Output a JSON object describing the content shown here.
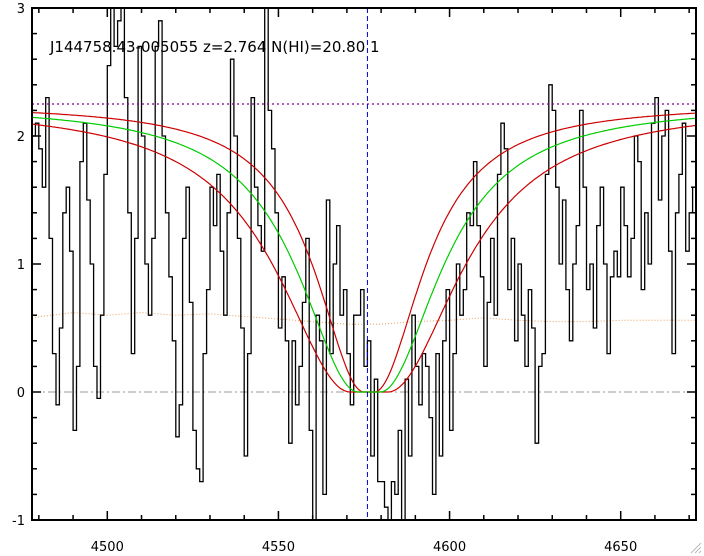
{
  "chart_data": {
    "type": "line",
    "title": "J144758.43-005055 z=2.764 N(HI)=20.80 1",
    "xlabel": "",
    "ylabel": "",
    "xlim": [
      4478,
      4672
    ],
    "ylim": [
      -1,
      3
    ],
    "x_ticks": [
      4500,
      4550,
      4600,
      4650
    ],
    "x_tick_labels": [
      "4500",
      "4550",
      "4600",
      "4650"
    ],
    "y_ticks": [
      -1,
      0,
      1,
      2,
      3
    ],
    "y_tick_labels": [
      "-1",
      "0",
      "1",
      "2",
      "3"
    ],
    "grid": false,
    "legend": "none",
    "continuum_level": 2.25,
    "zero_level": 0,
    "line_center": 4576,
    "model": {
      "center": 4576.5,
      "continuum": 2.25,
      "gamma": 21,
      "gamma_low": 17,
      "gamma_high": 25.5,
      "core_half_width": 3.2,
      "core_half_width_low": 1.5,
      "core_half_width_high": 5.5
    },
    "series": [
      {
        "kind": "flux",
        "color": "#000000",
        "x_start": 4478.5,
        "x_step": 1,
        "values": [
          2.0,
          2.1,
          1.9,
          1.6,
          2.3,
          1.2,
          0.3,
          -0.1,
          0.5,
          1.4,
          1.6,
          1.1,
          -0.3,
          0.2,
          1.8,
          2.1,
          1.5,
          1.0,
          0.2,
          -0.05,
          0.6,
          1.7,
          2.55,
          3.0,
          2.7,
          2.9,
          3.05,
          2.3,
          1.4,
          0.3,
          1.2,
          2.7,
          2.0,
          1.0,
          0.6,
          1.2,
          2.7,
          2.9,
          2.0,
          1.4,
          0.9,
          0.4,
          -0.35,
          -0.1,
          1.2,
          1.6,
          0.7,
          -0.3,
          -0.6,
          -0.7,
          0.3,
          0.8,
          1.6,
          1.3,
          1.7,
          1.1,
          0.6,
          1.4,
          2.6,
          2.0,
          1.2,
          0.5,
          -0.5,
          0.3,
          2.3,
          1.6,
          1.3,
          1.1,
          3.05,
          2.2,
          1.9,
          1.4,
          0.5,
          0.9,
          0.4,
          -0.4,
          0.4,
          -0.1,
          0.2,
          0.7,
          1.2,
          -0.3,
          -1.0,
          0.6,
          0.4,
          -0.8,
          1.5,
          0.3,
          1.0,
          1.3,
          0.6,
          0.8,
          0.3,
          -0.1,
          0.6,
          0.6,
          0.8,
          0.2,
          0.4,
          -0.5,
          0.1,
          -0.7,
          -0.7,
          -0.9,
          -1.15,
          -0.7,
          -0.8,
          -0.3,
          -1.0,
          0.1,
          -0.5,
          0.6,
          0.2,
          -0.1,
          0.3,
          0.2,
          -0.2,
          -0.8,
          0.3,
          -0.5,
          0.4,
          0.8,
          -0.3,
          0.3,
          1.0,
          0.6,
          0.8,
          1.4,
          1.3,
          1.8,
          1.3,
          0.9,
          0.2,
          0.7,
          1.2,
          0.6,
          1.7,
          2.1,
          1.9,
          0.8,
          1.2,
          0.4,
          1.0,
          0.6,
          0.2,
          0.8,
          0.5,
          -0.4,
          0.2,
          0.3,
          1.7,
          2.4,
          2.2,
          1.6,
          1.0,
          1.5,
          0.8,
          0.4,
          1.0,
          1.3,
          2.2,
          1.6,
          0.8,
          1.0,
          0.5,
          1.3,
          1.6,
          1.0,
          0.3,
          0.9,
          1.1,
          0.9,
          1.6,
          1.3,
          0.9,
          1.2,
          2.0,
          1.8,
          0.8,
          1.4,
          1.0,
          2.1,
          2.3,
          1.5,
          2.0,
          2.2,
          1.1,
          0.3,
          1.4,
          1.7,
          2.1,
          1.1,
          1.4,
          1.6,
          1.2,
          1.7,
          1.4,
          1.3,
          1.5
        ]
      },
      {
        "kind": "error",
        "color": "#e8a060",
        "x": [
          4478,
          4490,
          4500,
          4510,
          4520,
          4530,
          4540,
          4550,
          4560,
          4570,
          4580,
          4590,
          4600,
          4610,
          4620,
          4630,
          4640,
          4650,
          4660,
          4672
        ],
        "values": [
          0.58,
          0.62,
          0.6,
          0.62,
          0.6,
          0.61,
          0.59,
          0.57,
          0.55,
          0.53,
          0.53,
          0.55,
          0.56,
          0.58,
          0.56,
          0.55,
          0.55,
          0.56,
          0.56,
          0.56
        ]
      }
    ]
  },
  "colors": {
    "flux": "#000000",
    "model": "#00cc00",
    "model_bounds": "#cc0000",
    "continuum": "#8000a0",
    "center_line": "#0000cc",
    "zero_line": "#999999",
    "error": "#e8a060"
  }
}
